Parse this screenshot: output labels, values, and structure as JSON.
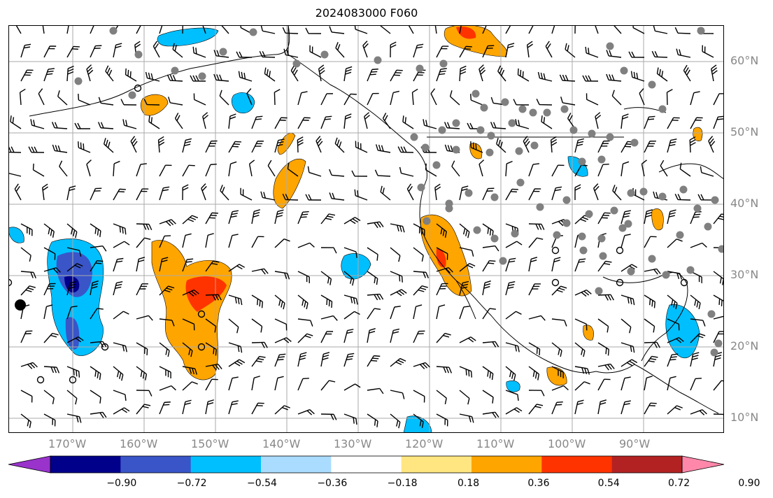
{
  "title": "2024083000 F060",
  "lon_labels": [
    "170°W",
    "160°W",
    "150°W",
    "140°W",
    "130°W",
    "120°W",
    "110°W",
    "100°W",
    "90°W"
  ],
  "lat_labels": [
    "60°N",
    "50°N",
    "40°N",
    "30°N",
    "20°N",
    "10°N"
  ],
  "colorbar": {
    "tick_labels": [
      "−0.90",
      "−0.72",
      "−0.54",
      "−0.36",
      "−0.18",
      "0.18",
      "0.36",
      "0.54",
      "0.72",
      "0.90"
    ],
    "colors": [
      "#9933cc",
      "#00008b",
      "#3a55c8",
      "#00bfff",
      "#aadcff",
      "#ffffff",
      "#ffe680",
      "#ffa500",
      "#ff3300",
      "#b22222",
      "#ff88aa"
    ]
  },
  "colors": {
    "grid": "#aaaaaa",
    "coast": "#000000",
    "station": "#808080"
  }
}
